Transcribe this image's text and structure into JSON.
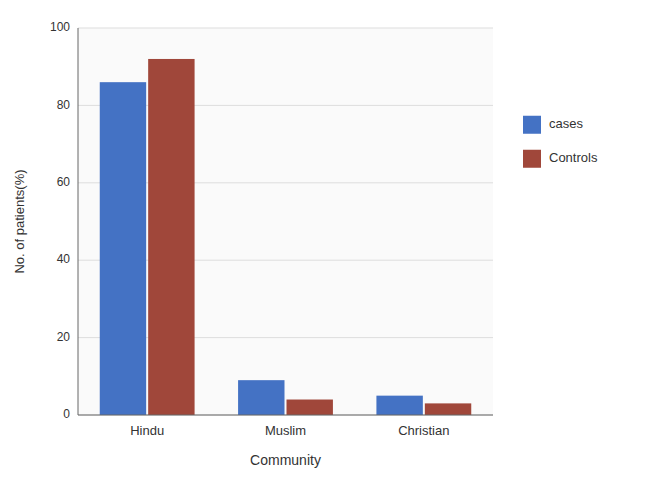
{
  "chart_data": {
    "type": "bar",
    "x_label": "Community",
    "y_label": "No. of patients(%)",
    "categories": [
      "Hindu",
      "Muslim",
      "Christian"
    ],
    "series": [
      {
        "name": "cases",
        "color": "#4472C4",
        "values": [
          86,
          9,
          5
        ]
      },
      {
        "name": "Controls",
        "color": "#A0473A",
        "values": [
          92,
          4,
          3
        ]
      }
    ],
    "ylim": [
      0,
      100
    ],
    "yticks": [
      0,
      20,
      40,
      60,
      80,
      100
    ],
    "grid": true,
    "legend": "right"
  }
}
